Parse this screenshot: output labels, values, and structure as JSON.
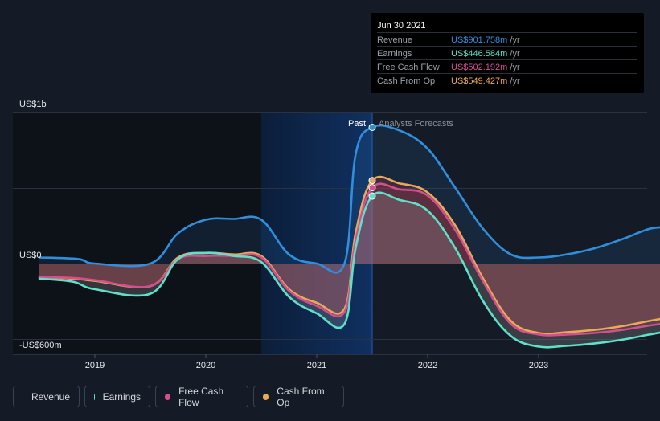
{
  "chart_data": {
    "type": "line",
    "x_ticks": [
      "2019",
      "2020",
      "2021",
      "2022",
      "2023"
    ],
    "y_ticks": [
      "US$1b",
      "US$0",
      "-US$600m"
    ],
    "y_tick_values": [
      1000,
      0,
      -600
    ],
    "ylim": [
      -600,
      1000
    ],
    "xlim": [
      2018.5,
      2024.15
    ],
    "past_label": "Past",
    "forecast_label": "Analysts Forecasts",
    "divider_x": 2021.5,
    "series": [
      {
        "name": "Revenue",
        "color": "#2f8fdc",
        "x": [
          2018.5,
          2018.85,
          2019.0,
          2019.5,
          2019.75,
          2020.0,
          2020.25,
          2020.5,
          2020.75,
          2021.0,
          2021.25,
          2021.35,
          2021.5,
          2021.75,
          2022.0,
          2022.25,
          2022.5,
          2022.75,
          2023.0,
          2023.25,
          2023.5,
          2023.75,
          2024.0,
          2024.15
        ],
        "y": [
          40,
          30,
          0,
          0,
          200,
          290,
          295,
          290,
          60,
          0,
          0,
          720,
          901.758,
          880,
          760,
          500,
          230,
          60,
          40,
          60,
          100,
          160,
          230,
          240
        ]
      },
      {
        "name": "Earnings",
        "color": "#5ee0c9",
        "x": [
          2018.5,
          2018.8,
          2019.0,
          2019.5,
          2019.75,
          2020.0,
          2020.25,
          2020.5,
          2020.75,
          2021.0,
          2021.25,
          2021.35,
          2021.5,
          2021.75,
          2022.0,
          2022.25,
          2022.5,
          2022.75,
          2023.0,
          2023.25,
          2023.5,
          2023.75,
          2024.0,
          2024.15
        ],
        "y": [
          -100,
          -120,
          -170,
          -200,
          30,
          70,
          50,
          10,
          -220,
          -330,
          -400,
          100,
          446.584,
          420,
          350,
          100,
          -250,
          -480,
          -550,
          -545,
          -530,
          -505,
          -470,
          -450
        ]
      },
      {
        "name": "Free Cash Flow",
        "color": "#d34f8e",
        "x": [
          2018.5,
          2018.8,
          2019.0,
          2019.5,
          2019.75,
          2020.0,
          2020.25,
          2020.5,
          2020.75,
          2021.0,
          2021.25,
          2021.35,
          2021.5,
          2021.75,
          2022.0,
          2022.25,
          2022.5,
          2022.75,
          2023.0,
          2023.25,
          2023.5,
          2023.75,
          2024.0,
          2024.15
        ],
        "y": [
          -90,
          -95,
          -110,
          -150,
          30,
          50,
          50,
          40,
          -180,
          -280,
          -320,
          150,
          502.192,
          490,
          450,
          220,
          -120,
          -400,
          -470,
          -470,
          -460,
          -440,
          -410,
          -395
        ]
      },
      {
        "name": "Cash From Op",
        "color": "#e8a95a",
        "x": [
          2018.5,
          2018.8,
          2019.0,
          2019.5,
          2019.75,
          2020.0,
          2020.25,
          2020.5,
          2020.75,
          2021.0,
          2021.25,
          2021.35,
          2021.5,
          2021.75,
          2022.0,
          2022.25,
          2022.5,
          2022.75,
          2023.0,
          2023.25,
          2023.5,
          2023.75,
          2024.0,
          2024.15
        ],
        "y": [
          -90,
          -100,
          -115,
          -150,
          40,
          70,
          60,
          50,
          -170,
          -260,
          -300,
          200,
          549.427,
          530,
          470,
          250,
          -100,
          -380,
          -460,
          -455,
          -440,
          -415,
          -380,
          -360
        ]
      }
    ]
  },
  "tooltip": {
    "date": "Jun 30 2021",
    "rows": [
      {
        "label": "Revenue",
        "value": "US$901.758m",
        "unit": "/yr",
        "color": "#2f8fdc"
      },
      {
        "label": "Earnings",
        "value": "US$446.584m",
        "unit": "/yr",
        "color": "#5ee0c9"
      },
      {
        "label": "Free Cash Flow",
        "value": "US$502.192m",
        "unit": "/yr",
        "color": "#d34f8e"
      },
      {
        "label": "Cash From Op",
        "value": "US$549.427m",
        "unit": "/yr",
        "color": "#e8a95a"
      }
    ]
  },
  "legend": [
    {
      "label": "Revenue",
      "color": "#2f8fdc"
    },
    {
      "label": "Earnings",
      "color": "#5ee0c9"
    },
    {
      "label": "Free Cash Flow",
      "color": "#d34f8e"
    },
    {
      "label": "Cash From Op",
      "color": "#e8a95a"
    }
  ]
}
